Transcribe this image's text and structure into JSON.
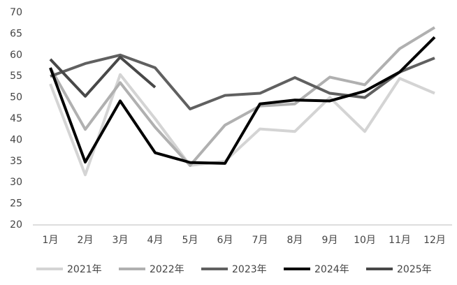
{
  "chart_data": {
    "type": "line",
    "categories": [
      "1月",
      "2月",
      "3月",
      "4月",
      "5月",
      "6月",
      "7月",
      "8月",
      "9月",
      "10月",
      "11月",
      "12月"
    ],
    "series": [
      {
        "name": "2021年",
        "color": "#d4d4d4",
        "values": [
          53.2,
          31.8,
          55.4,
          45,
          34,
          35,
          42.6,
          42,
          50,
          42,
          54.5,
          51
        ]
      },
      {
        "name": "2022年",
        "color": "#b0b0b0",
        "values": [
          57,
          42.5,
          53.5,
          43,
          34,
          43.5,
          48,
          48.5,
          54.8,
          53,
          61.5,
          66.5
        ]
      },
      {
        "name": "2023年",
        "color": "#606060",
        "values": [
          55,
          58,
          60,
          57,
          47.3,
          50.5,
          51,
          54.7,
          51,
          50,
          56,
          59.3
        ]
      },
      {
        "name": "2024年",
        "color": "#000000",
        "values": [
          57,
          34.8,
          49.2,
          37,
          34.7,
          34.5,
          48.5,
          49.4,
          49.2,
          51.5,
          56,
          64.2
        ]
      },
      {
        "name": "2025年",
        "color": "#484848",
        "values": [
          59,
          50.3,
          59.5,
          52.4,
          null,
          null,
          null,
          null,
          null,
          null,
          null,
          null
        ]
      }
    ],
    "ylim": [
      20,
      70
    ],
    "yticks": [
      20,
      25,
      30,
      35,
      40,
      45,
      50,
      55,
      60,
      65,
      70
    ],
    "grid": false,
    "legend": "bottom"
  }
}
